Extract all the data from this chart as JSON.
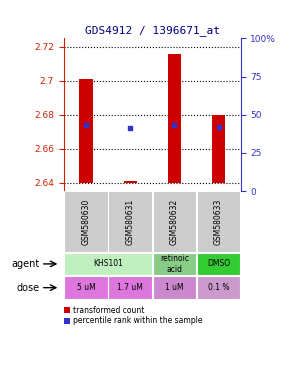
{
  "title": "GDS4912 / 1396671_at",
  "samples": [
    "GSM580630",
    "GSM580631",
    "GSM580632",
    "GSM580633"
  ],
  "bar_bottom": 2.64,
  "bar_tops": [
    2.701,
    2.641,
    2.716,
    2.68
  ],
  "blue_values": [
    2.674,
    2.672,
    2.674,
    2.673
  ],
  "ylim_left": [
    2.635,
    2.725
  ],
  "ylim_right": [
    0,
    100
  ],
  "yticks_left": [
    2.64,
    2.66,
    2.68,
    2.7,
    2.72
  ],
  "ytick_labels_left": [
    "2.64",
    "2.66",
    "2.68",
    "2.7",
    "2.72"
  ],
  "yticks_right": [
    0,
    25,
    50,
    75,
    100
  ],
  "ytick_labels_right": [
    "0",
    "25",
    "50",
    "75",
    "100%"
  ],
  "bar_color": "#cc0000",
  "blue_color": "#3333cc",
  "left_tick_color": "#cc2200",
  "right_tick_color": "#3333cc",
  "agent_spans": [
    [
      0,
      2,
      "KHS101",
      "#c0f0c0"
    ],
    [
      2,
      3,
      "retinoic\nacid",
      "#88cc88"
    ],
    [
      3,
      4,
      "DMSO",
      "#33cc33"
    ]
  ],
  "dose_labels": [
    "5 uM",
    "1.7 uM",
    "1 uM",
    "0.1 %"
  ],
  "dose_colors": [
    "#dd77dd",
    "#dd77dd",
    "#cc88cc",
    "#cc99cc"
  ],
  "sample_bg_color": "#cccccc",
  "bar_width": 0.3
}
